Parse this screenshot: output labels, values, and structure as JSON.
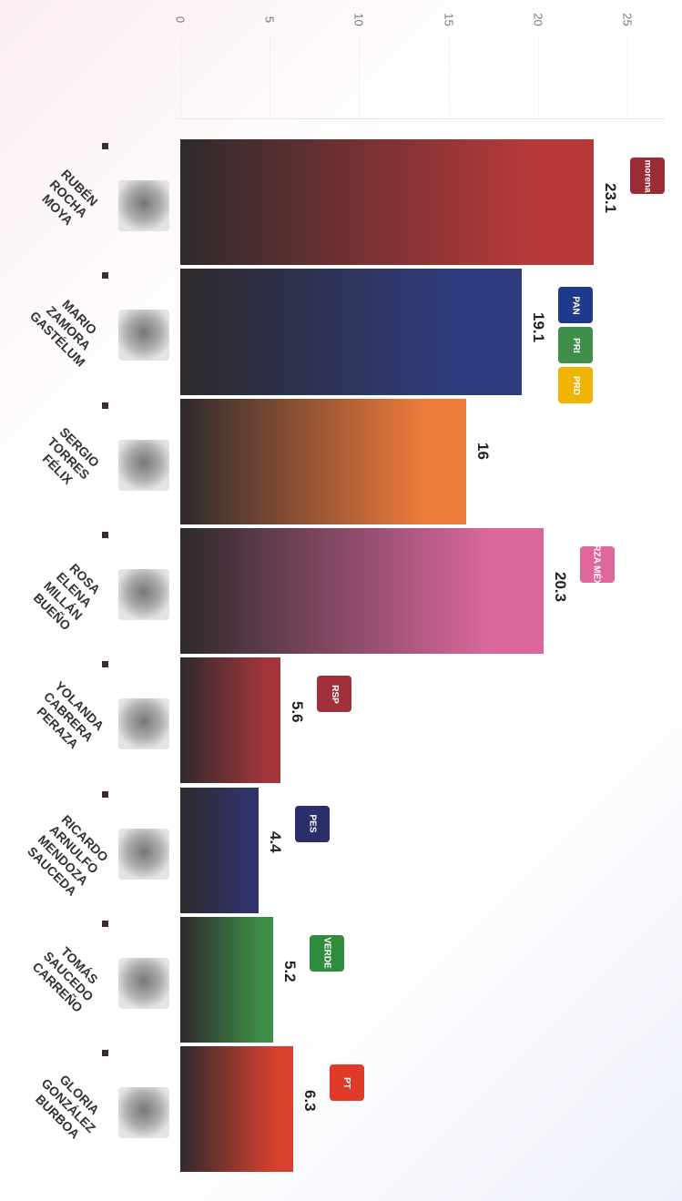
{
  "chart_data": {
    "type": "bar",
    "orientation": "horizontal",
    "categories": [
      "RUBÉN ROCHA MOYA",
      "MARIO ZAMORA GASTÉLUM",
      "SERGIO TORRES FÉLIX",
      "ROSA ELENA MILLÁN BUEÑO",
      "YOLANDA CABRERA PERAZA",
      "RICARDO ARNULFO MENDOZA SAUCEDA",
      "TOMÁS SAUCEDO CARREÑO",
      "GLORIA GONZÁLEZ BURBOA"
    ],
    "values": [
      23.1,
      19.1,
      16,
      20.3,
      5.6,
      4.4,
      5.2,
      6.3
    ],
    "colors": [
      "#b8393a",
      "#2f3d80",
      "#ec7b3c",
      "#d9679c",
      "#a3363b",
      "#30336a",
      "#3d8c47",
      "#d9412f"
    ],
    "logos": [
      [
        {
          "label": "morena",
          "color": "#9b2c35"
        }
      ],
      [
        {
          "label": "PAN",
          "color": "#1f3a8a"
        },
        {
          "label": "PRI",
          "color": "#3f8f4a"
        },
        {
          "label": "PRD",
          "color": "#f0b400"
        }
      ],
      [],
      [
        {
          "label": "FUERZA MÉXICO",
          "color": "#e0679a"
        }
      ],
      [
        {
          "label": "RSP",
          "color": "#a0303a"
        }
      ],
      [
        {
          "label": "PES",
          "color": "#2a2e6a"
        }
      ],
      [
        {
          "label": "VERDE",
          "color": "#2f8c3f"
        }
      ],
      [
        {
          "label": "PT",
          "color": "#e03a28"
        }
      ]
    ],
    "xlim": [
      0,
      25
    ],
    "xticks": [
      0,
      5,
      10,
      15,
      20,
      25
    ]
  }
}
